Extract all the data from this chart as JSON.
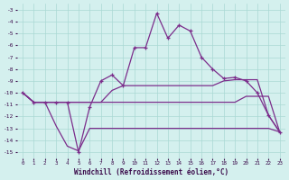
{
  "xlabel": "Windchill (Refroidissement éolien,°C)",
  "x": [
    0,
    1,
    2,
    3,
    4,
    5,
    6,
    7,
    8,
    9,
    10,
    11,
    12,
    13,
    14,
    15,
    16,
    17,
    18,
    19,
    20,
    21,
    22,
    23
  ],
  "line_main": [
    -10,
    -10.8,
    -10.8,
    -10.8,
    -10.8,
    -15.0,
    -11.2,
    -9.0,
    -8.5,
    -9.4,
    -6.2,
    -6.2,
    -3.3,
    -5.4,
    -4.3,
    -4.8,
    -7.0,
    -8.0,
    -8.8,
    -8.7,
    -9.0,
    -10.0,
    -11.9,
    -13.3
  ],
  "line_upper": [
    -10,
    -10.8,
    -10.8,
    -10.8,
    -10.8,
    -10.8,
    -10.8,
    -10.8,
    -9.8,
    -9.4,
    -9.4,
    -9.4,
    -9.4,
    -9.4,
    -9.4,
    -9.4,
    -9.4,
    -9.4,
    -9.0,
    -8.9,
    -8.9,
    -8.9,
    -11.9,
    -13.3
  ],
  "line_lower": [
    -10,
    -10.8,
    -10.8,
    -12.8,
    -14.5,
    -14.9,
    -13.0,
    -13.0,
    -13.0,
    -13.0,
    -13.0,
    -13.0,
    -13.0,
    -13.0,
    -13.0,
    -13.0,
    -13.0,
    -13.0,
    -13.0,
    -13.0,
    -13.0,
    -13.0,
    -13.0,
    -13.3
  ],
  "line_mid": [
    -10,
    -10.8,
    -10.8,
    -10.8,
    -10.8,
    -10.8,
    -10.8,
    -10.8,
    -10.8,
    -10.8,
    -10.8,
    -10.8,
    -10.8,
    -10.8,
    -10.8,
    -10.8,
    -10.8,
    -10.8,
    -10.8,
    -10.8,
    -10.3,
    -10.3,
    -10.3,
    -13.3
  ],
  "line_color": "#7b2d8b",
  "bg_color": "#d4f0ee",
  "grid_color": "#aad8d4",
  "ylim": [
    -15.5,
    -2.5
  ],
  "yticks": [
    -3,
    -4,
    -5,
    -6,
    -7,
    -8,
    -9,
    -10,
    -11,
    -12,
    -13,
    -14,
    -15
  ],
  "xticks": [
    0,
    1,
    2,
    3,
    4,
    5,
    6,
    7,
    8,
    9,
    10,
    11,
    12,
    13,
    14,
    15,
    16,
    17,
    18,
    19,
    20,
    21,
    22,
    23
  ]
}
